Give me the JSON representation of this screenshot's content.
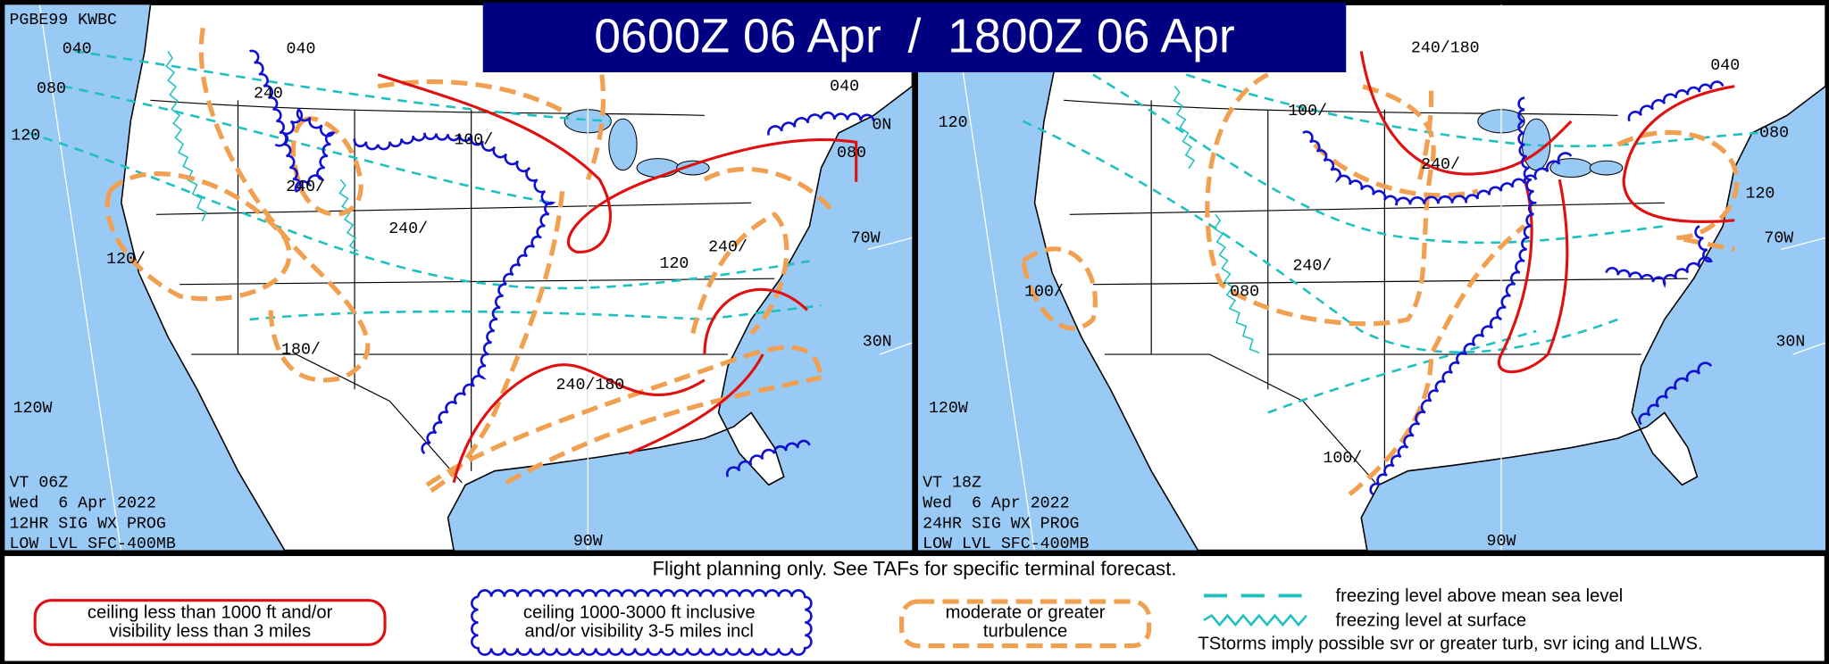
{
  "header": {
    "title": "0600Z 06 Apr  /  1800Z 06 Apr"
  },
  "panels": [
    {
      "id_label": "PGBE99 KWBC",
      "map_labels": [
        "040",
        "080",
        "120",
        "040",
        "240",
        "100/",
        "040",
        "0N",
        "080",
        "240/",
        "240/",
        "120/",
        "120",
        "240/",
        "70W",
        "180/",
        "30N",
        "240/180",
        "120W",
        "90W"
      ],
      "footer": [
        "VT 06Z",
        "Wed  6 Apr 2022",
        "12HR SIG WX PROG",
        "LOW LVL SFC-400MB"
      ]
    },
    {
      "map_labels": [
        "240/180",
        "040",
        "120",
        "100/",
        "080",
        "240/",
        "120",
        "70W",
        "100/",
        "080",
        "240/",
        "30N",
        "120W",
        "100/",
        "90W"
      ],
      "footer": [
        "VT 18Z",
        "Wed  6 Apr 2022",
        "24HR SIG WX PROG",
        "LOW LVL SFC-400MB"
      ]
    }
  ],
  "legend": {
    "note": "Flight planning only. See TAFs for specific terminal forecast.",
    "ifr": [
      "ceiling less than 1000 ft and/or",
      "visibility less than 3 miles"
    ],
    "mvfr": [
      "ceiling 1000-3000 ft inclusive",
      "and/or visibility 3-5 miles incl"
    ],
    "turbulence": [
      "moderate or greater",
      "turbulence"
    ],
    "freezing_msl": "freezing level above mean sea level",
    "freezing_sfc": "freezing level at surface",
    "tstorms": "TStorms imply possible svr or greater turb, svr icing and LLWS."
  }
}
